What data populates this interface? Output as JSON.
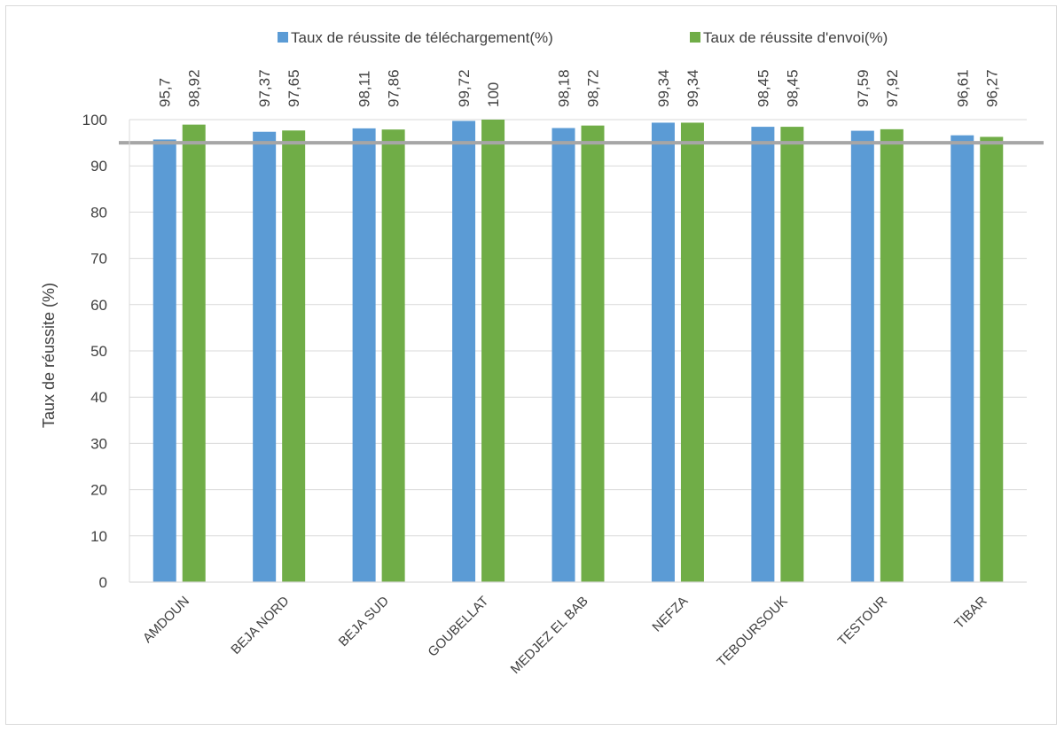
{
  "chart_data": {
    "type": "bar",
    "categories": [
      "AMDOUN",
      "BEJA NORD",
      "BEJA SUD",
      "GOUBELLAT",
      "MEDJEZ EL BAB",
      "NEFZA",
      "TEBOURSOUK",
      "TESTOUR",
      "TIBAR"
    ],
    "series": [
      {
        "name": "Taux de réussite de téléchargement(%)",
        "values": [
          95.7,
          97.37,
          98.11,
          99.72,
          98.18,
          99.34,
          98.45,
          97.59,
          96.61
        ],
        "labels": [
          "95,7",
          "97,37",
          "98,11",
          "99,72",
          "98,18",
          "99,34",
          "98,45",
          "97,59",
          "96,61"
        ],
        "color": "#5b9bd5"
      },
      {
        "name": "Taux de réussite d'envoi(%)",
        "values": [
          98.92,
          97.65,
          97.86,
          100,
          98.72,
          99.34,
          98.45,
          97.92,
          96.27
        ],
        "labels": [
          "98,92",
          "97,65",
          "97,86",
          "100",
          "98,72",
          "99,34",
          "98,45",
          "97,92",
          "96,27"
        ],
        "color": "#70ad47"
      }
    ],
    "reference_line": {
      "value": 95,
      "color": "#a6a6a6"
    },
    "title": "",
    "xlabel": "",
    "ylabel": "Taux de réussite (%)",
    "ylim": [
      0,
      100
    ],
    "yticks": [
      0,
      10,
      20,
      30,
      40,
      50,
      60,
      70,
      80,
      90,
      100
    ],
    "grid": true,
    "gridline_color": "#d9d9d9",
    "legend_position": "top"
  }
}
